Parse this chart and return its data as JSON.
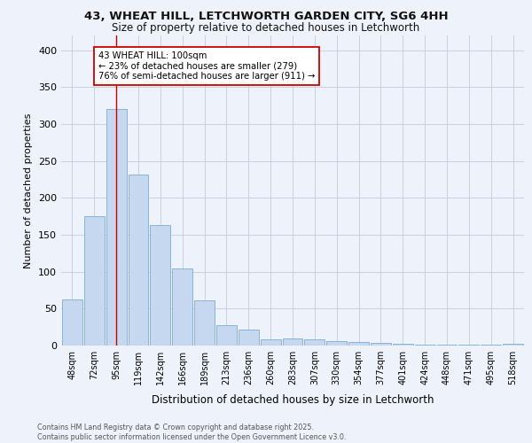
{
  "title_line1": "43, WHEAT HILL, LETCHWORTH GARDEN CITY, SG6 4HH",
  "title_line2": "Size of property relative to detached houses in Letchworth",
  "xlabel": "Distribution of detached houses by size in Letchworth",
  "ylabel": "Number of detached properties",
  "bar_labels": [
    "48sqm",
    "72sqm",
    "95sqm",
    "119sqm",
    "142sqm",
    "166sqm",
    "189sqm",
    "213sqm",
    "236sqm",
    "260sqm",
    "283sqm",
    "307sqm",
    "330sqm",
    "354sqm",
    "377sqm",
    "401sqm",
    "424sqm",
    "448sqm",
    "471sqm",
    "495sqm",
    "518sqm"
  ],
  "bar_values": [
    62,
    175,
    320,
    232,
    163,
    104,
    61,
    28,
    22,
    9,
    10,
    9,
    6,
    5,
    4,
    2,
    1,
    1,
    1,
    1,
    2
  ],
  "bar_color": "#c5d8f0",
  "bar_edgecolor": "#7aadd4",
  "property_line_x": 2,
  "property_line_color": "#cc0000",
  "annotation_text": "43 WHEAT HILL: 100sqm\n← 23% of detached houses are smaller (279)\n76% of semi-detached houses are larger (911) →",
  "annotation_box_color": "#ffffff",
  "annotation_box_edgecolor": "#cc0000",
  "ylim": [
    0,
    420
  ],
  "yticks": [
    0,
    50,
    100,
    150,
    200,
    250,
    300,
    350,
    400
  ],
  "background_color": "#eef2fb",
  "grid_color": "#c8d0e0",
  "footer_line1": "Contains HM Land Registry data © Crown copyright and database right 2025.",
  "footer_line2": "Contains public sector information licensed under the Open Government Licence v3.0."
}
